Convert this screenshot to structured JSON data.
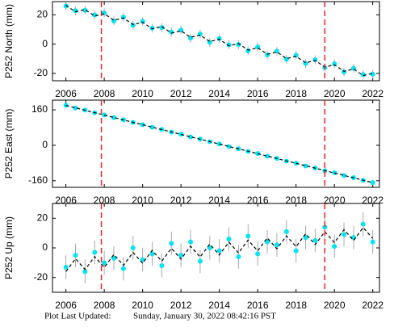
{
  "chart_data": [
    {
      "type": "scatter",
      "ylabel": "P252 North (mm)",
      "x": [
        2006.0,
        2006.5,
        2007.0,
        2007.5,
        2008.0,
        2008.5,
        2009.0,
        2009.5,
        2010.0,
        2010.5,
        2011.0,
        2011.5,
        2012.0,
        2012.5,
        2013.0,
        2013.5,
        2014.0,
        2014.5,
        2015.0,
        2015.5,
        2016.0,
        2016.5,
        2017.0,
        2017.5,
        2018.0,
        2018.5,
        2019.0,
        2019.5,
        2020.0,
        2020.5,
        2021.0,
        2021.5,
        2022.0
      ],
      "xlim": [
        2005.3,
        2022.35
      ],
      "xticks": [
        2006,
        2008,
        2010,
        2012,
        2014,
        2016,
        2018,
        2020,
        2022
      ],
      "ylim": [
        -25,
        29
      ],
      "yticks": [
        -20,
        0,
        20
      ],
      "event_lines": [
        2007.85,
        2019.5
      ],
      "event_color": "#e8242c",
      "series": [
        {
          "color": "#00e5ee",
          "error_color": "#aaaaaa",
          "error": 3,
          "values": [
            26.0,
            22.8,
            23.1,
            19.9,
            21.3,
            15.8,
            18.4,
            12.9,
            15.5,
            10.9,
            11.3,
            8.2,
            9.6,
            4.1,
            6.9,
            1.2,
            3.8,
            -0.5,
            -0.3,
            -4.6,
            -1.9,
            -7.4,
            -4.8,
            -10.3,
            -7.6,
            -13.2,
            -10.7,
            -16.1,
            -13.4,
            -19.1,
            -16.5,
            -20.8,
            -20.5
          ]
        },
        {
          "color": "#000000",
          "line": "dashed",
          "values": [
            26.5,
            22.05,
            23.6,
            19.15,
            20.7,
            16.25,
            17.8,
            13.35,
            14.9,
            10.45,
            12,
            7.55,
            9.1,
            4.65,
            6.2,
            1.75,
            3.3,
            -1.15,
            0.4,
            -4.05,
            -2.5,
            -6.95,
            -5.4,
            -9.85,
            -8.3,
            -12.75,
            -11.2,
            -15.65,
            -14.1,
            -18.55,
            -17,
            -21.45,
            -19.9
          ]
        }
      ]
    },
    {
      "type": "scatter",
      "ylabel": "P252 East (mm)",
      "x": [
        2006.0,
        2006.5,
        2007.0,
        2007.5,
        2008.0,
        2008.5,
        2009.0,
        2009.5,
        2010.0,
        2010.5,
        2011.0,
        2011.5,
        2012.0,
        2012.5,
        2013.0,
        2013.5,
        2014.0,
        2014.5,
        2015.0,
        2015.5,
        2016.0,
        2016.5,
        2017.0,
        2017.5,
        2018.0,
        2018.5,
        2019.0,
        2019.5,
        2020.0,
        2020.5,
        2021.0,
        2021.5,
        2022.0
      ],
      "xlim": [
        2005.3,
        2022.35
      ],
      "xticks": [
        2006,
        2008,
        2010,
        2012,
        2014,
        2016,
        2018,
        2020,
        2022
      ],
      "ylim": [
        -190,
        204
      ],
      "yticks": [
        -160,
        0,
        160
      ],
      "event_lines": [
        2007.85,
        2019.5
      ],
      "event_color": "#e8242c",
      "series": [
        {
          "color": "#00e5ee",
          "error_color": "#aaaaaa",
          "error": 3,
          "values": [
            180.8,
            168.4,
            158.9,
            146.6,
            137.1,
            124.8,
            115.2,
            103.1,
            93.4,
            81.2,
            71.6,
            59.5,
            49.9,
            37.7,
            28.0,
            15.9,
            6.2,
            -5.9,
            -15.6,
            -27.8,
            -37.3,
            -49.5,
            -59.1,
            -71.4,
            -80.9,
            -93.2,
            -102.7,
            -115.0,
            -124.5,
            -136.8,
            -146.3,
            -158.6,
            -168.1
          ]
        },
        {
          "color": "#000000",
          "line": "dashed",
          "values": [
            180,
            169.1,
            158.2,
            147.3,
            136.4,
            125.5,
            114.6,
            103.7,
            92.8,
            81.9,
            71,
            60.1,
            49.2,
            38.3,
            27.4,
            16.5,
            5.6,
            -5.3,
            -16.2,
            -27.1,
            -38,
            -48.9,
            -59.8,
            -70.7,
            -81.6,
            -92.5,
            -103.4,
            -114.3,
            -125.2,
            -136.1,
            -147,
            -157.9,
            -168.8
          ]
        }
      ]
    },
    {
      "type": "scatter",
      "ylabel": "P252 Up (mm)",
      "x": [
        2006.0,
        2006.5,
        2007.0,
        2007.5,
        2008.0,
        2008.5,
        2009.0,
        2009.5,
        2010.0,
        2010.5,
        2011.0,
        2011.5,
        2012.0,
        2012.5,
        2013.0,
        2013.5,
        2014.0,
        2014.5,
        2015.0,
        2015.5,
        2016.0,
        2016.5,
        2017.0,
        2017.5,
        2018.0,
        2018.5,
        2019.0,
        2019.5,
        2020.0,
        2020.5,
        2021.0,
        2021.5,
        2022.0
      ],
      "xlim": [
        2005.3,
        2022.35
      ],
      "xticks": [
        2006,
        2008,
        2010,
        2012,
        2014,
        2016,
        2018,
        2020,
        2022
      ],
      "ylim": [
        -30,
        30
      ],
      "yticks": [
        -20,
        0,
        20
      ],
      "event_lines": [
        2007.85,
        2019.5
      ],
      "event_color": "#e8242c",
      "series": [
        {
          "color": "#00e5ee",
          "error_color": "#aaaaaa",
          "error": 8,
          "values": [
            -13,
            -5,
            -16,
            -3,
            -10,
            -7,
            -14,
            0,
            -8,
            -4,
            -12,
            3,
            -5,
            4,
            -9,
            0,
            -2,
            6,
            -6,
            8,
            -4,
            4,
            2,
            11,
            -2,
            7,
            5,
            14,
            1,
            9,
            7,
            16,
            4
          ]
        },
        {
          "color": "#000000",
          "line": "dashed",
          "values": [
            -16,
            -7.3,
            -14.6,
            -5.9,
            -13.2,
            -4.5,
            -11.8,
            -3.1,
            -10.4,
            -1.7,
            -9,
            -0.3,
            -7.6,
            1.1,
            -6.2,
            2.5,
            -4.8,
            3.9,
            -3.4,
            5.3,
            -2,
            6.7,
            -0.6,
            8.1,
            0.8,
            9.5,
            2.2,
            10.9,
            3.6,
            12.3,
            5,
            13.7,
            6.4
          ]
        }
      ]
    }
  ],
  "footer": {
    "label": "Plot Last Updated:",
    "timestamp": "Sunday, January 30, 2022 08:42:16 PST"
  }
}
